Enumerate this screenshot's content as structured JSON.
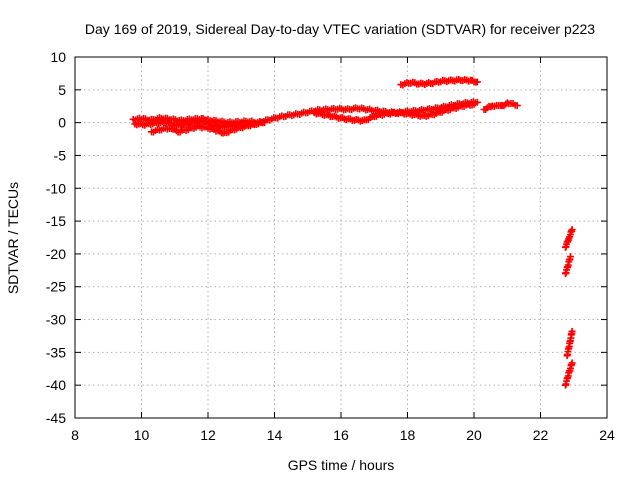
{
  "chart_data": {
    "type": "scatter",
    "title": "Day 169 of 2019, Sidereal Day-to-day VTEC variation (SDTVAR) for receiver p223",
    "xlabel": "GPS time / hours",
    "ylabel": "SDTVAR / TECUs",
    "xlim": [
      8,
      24
    ],
    "ylim": [
      -45,
      10
    ],
    "xticks": [
      "8",
      "10",
      "12",
      "14",
      "16",
      "18",
      "20",
      "22",
      "24"
    ],
    "yticks": [
      "10",
      "5",
      "0",
      "-5",
      "-10",
      "-15",
      "-20",
      "-25",
      "-30",
      "-35",
      "-40",
      "-45"
    ],
    "grid": true,
    "marker": "+",
    "color": "#ff0000",
    "segments": [
      {
        "x": [
          9.75,
          10.0,
          10.3,
          10.6,
          10.9,
          11.2,
          11.5,
          11.8,
          12.0,
          12.3,
          12.6,
          12.9,
          13.2,
          13.5,
          13.8,
          14.1,
          14.4,
          14.7,
          15.0,
          15.3,
          15.6,
          15.9,
          16.2,
          16.5,
          16.8,
          17.1,
          17.4,
          17.7,
          18.0,
          18.3,
          18.6,
          18.9,
          19.2,
          19.5,
          19.8,
          20.1
        ],
        "y": [
          0.5,
          0.6,
          0.4,
          0.7,
          0.5,
          0.3,
          0.5,
          0.6,
          0.4,
          0.2,
          0.0,
          0.1,
          0.2,
          0.0,
          0.4,
          0.8,
          1.1,
          1.3,
          1.6,
          1.9,
          2.0,
          2.1,
          2.0,
          2.2,
          2.0,
          1.8,
          1.6,
          1.5,
          1.7,
          1.8,
          2.0,
          2.2,
          2.5,
          2.8,
          3.0,
          3.1
        ]
      },
      {
        "x": [
          9.8,
          10.1,
          10.4,
          10.7,
          11.0,
          11.3,
          11.6,
          11.9,
          12.2,
          12.5,
          12.8,
          13.1,
          13.4
        ],
        "y": [
          -0.2,
          -0.3,
          -0.1,
          0.1,
          -0.4,
          -0.3,
          0.0,
          0.2,
          -0.5,
          -0.6,
          -0.4,
          -0.2,
          -0.3
        ]
      },
      {
        "x": [
          10.3,
          10.6,
          10.9,
          11.1,
          11.4,
          11.7,
          12.0,
          12.3,
          12.5,
          12.8,
          13.1,
          13.4,
          13.7
        ],
        "y": [
          -1.4,
          -1.0,
          -0.8,
          -1.4,
          -1.0,
          -0.6,
          -0.8,
          -1.3,
          -1.6,
          -1.0,
          -0.6,
          -0.2,
          0.0
        ]
      },
      {
        "x": [
          15.2,
          15.5,
          15.8,
          16.1,
          16.4,
          16.7,
          17.0,
          17.3,
          17.6,
          17.9,
          18.2,
          18.5,
          18.8,
          19.1,
          19.4,
          19.7,
          20.0
        ],
        "y": [
          1.5,
          1.2,
          0.9,
          0.6,
          0.4,
          0.3,
          1.0,
          1.3,
          1.5,
          1.4,
          1.2,
          1.0,
          1.3,
          1.8,
          2.2,
          2.6,
          2.8
        ]
      },
      {
        "x": [
          17.8,
          18.1,
          18.4,
          18.7,
          19.0,
          19.3,
          19.6,
          19.9,
          20.1
        ],
        "y": [
          5.8,
          6.1,
          5.9,
          6.0,
          6.3,
          6.4,
          6.5,
          6.4,
          6.2
        ]
      },
      {
        "x": [
          20.3,
          20.55,
          20.8,
          21.05,
          21.3
        ],
        "y": [
          2.0,
          2.6,
          2.5,
          3.0,
          2.6
        ]
      },
      {
        "x": [
          22.75,
          22.8,
          22.85,
          22.9,
          22.95
        ],
        "y": [
          -19.0,
          -18.3,
          -17.6,
          -17.0,
          -16.3
        ]
      },
      {
        "x": [
          22.75,
          22.8,
          22.85,
          22.9
        ],
        "y": [
          -23.0,
          -22.2,
          -21.3,
          -20.4
        ]
      },
      {
        "x": [
          22.8,
          22.85,
          22.9,
          22.95
        ],
        "y": [
          -35.5,
          -34.3,
          -33.1,
          -31.8
        ]
      },
      {
        "x": [
          22.75,
          22.8,
          22.85,
          22.9,
          22.95
        ],
        "y": [
          -40.0,
          -39.1,
          -38.2,
          -37.4,
          -36.6
        ]
      }
    ]
  }
}
